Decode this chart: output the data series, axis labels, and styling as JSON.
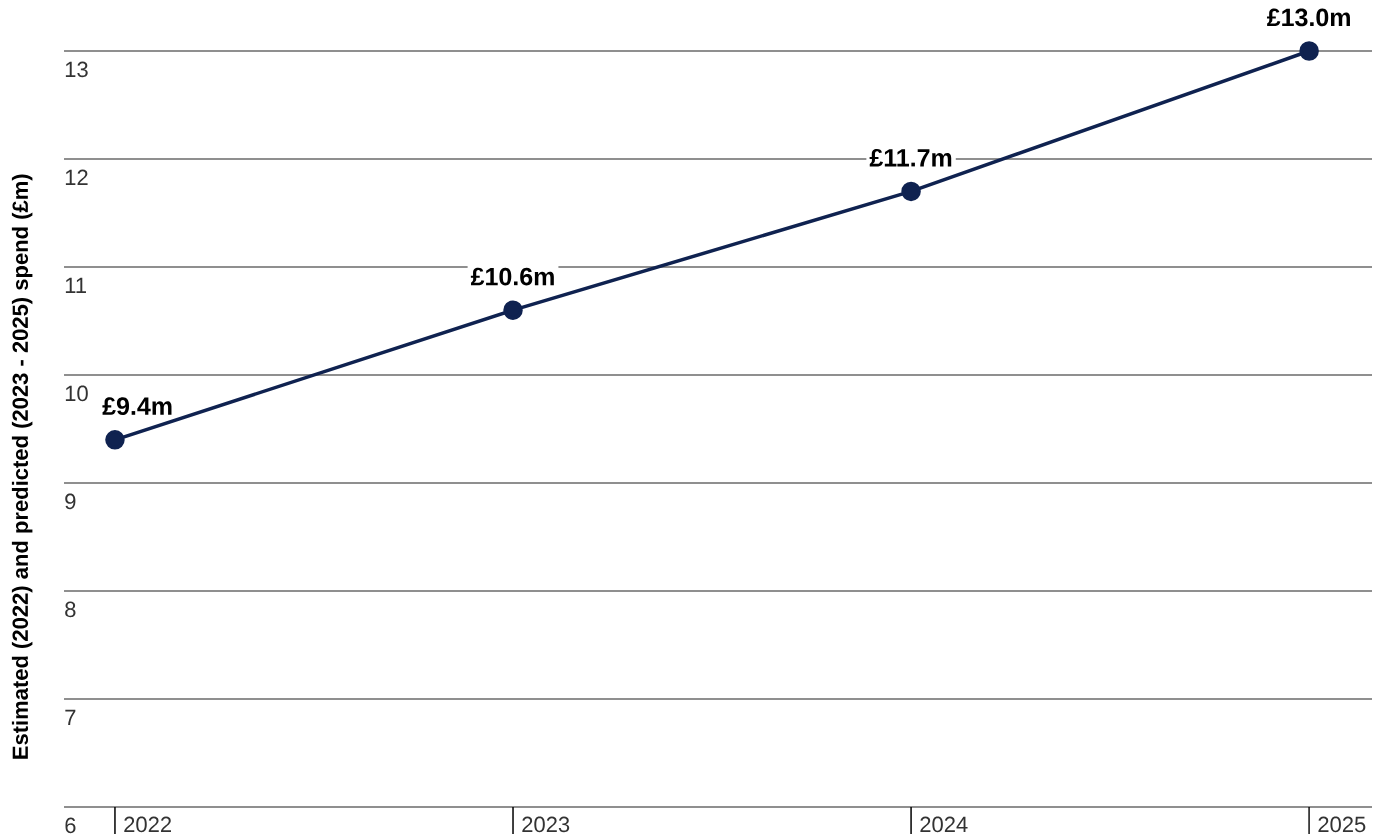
{
  "chart_data": {
    "type": "line",
    "ylabel": "Estimated (2022) and predicted (2023 - 2025) spend (£m)",
    "categories": [
      "2022",
      "2023",
      "2024",
      "2025"
    ],
    "values": [
      9.4,
      10.6,
      11.7,
      13.0
    ],
    "value_labels": [
      "£9.4m",
      "£10.6m",
      "£11.7m",
      "£13.0m"
    ],
    "color": "#0f2250",
    "ylim": [
      6,
      13
    ],
    "yticks": [
      6,
      7,
      8,
      9,
      10,
      11,
      12,
      13
    ],
    "grid": "y",
    "marker": "circle",
    "line_style": "solid"
  }
}
